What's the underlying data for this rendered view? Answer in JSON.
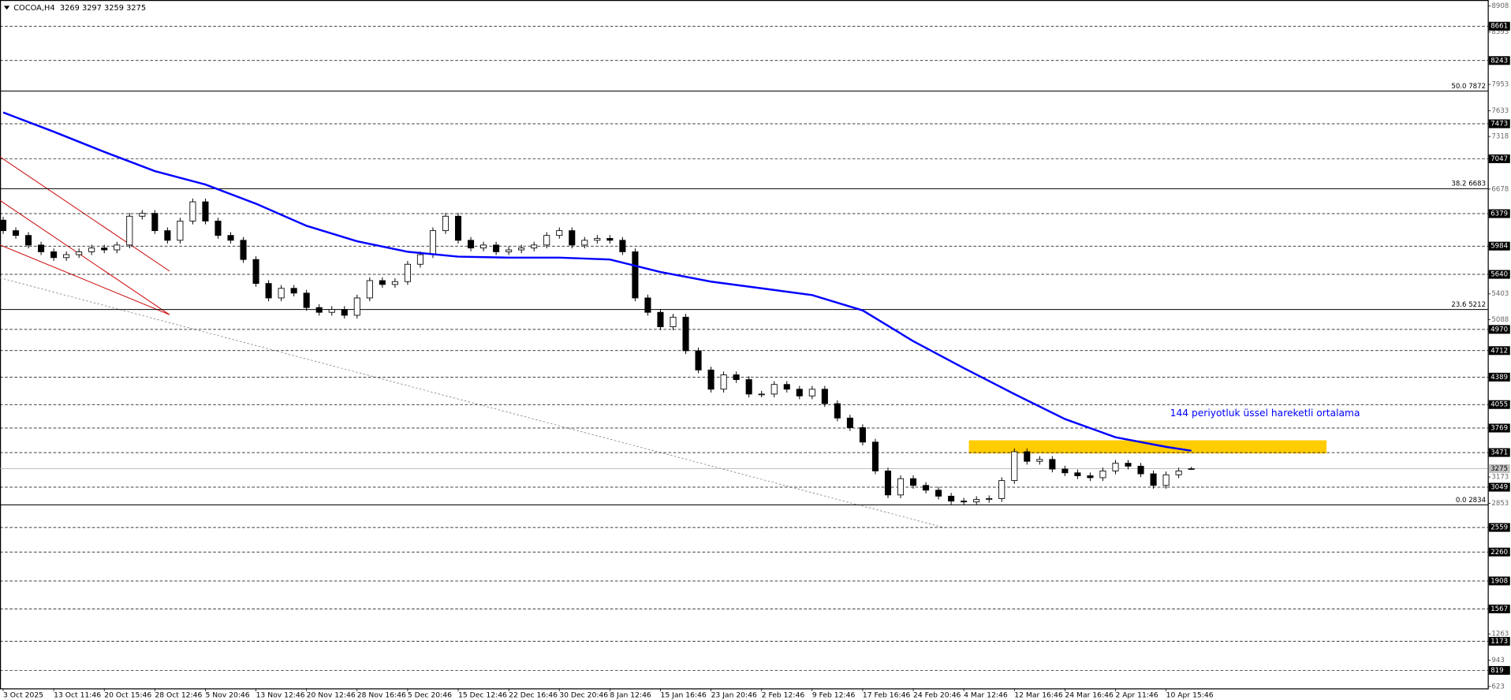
{
  "chart_data": {
    "type": "candlestick",
    "title": "COCOA,H4  3269 3297 3259 3275",
    "up_color": "#ffffff",
    "down_color": "#000000",
    "ohlc": [
      [
        6300,
        6340,
        6132,
        6172
      ],
      [
        6172,
        6212,
        6074,
        6114
      ],
      [
        6114,
        6154,
        5957,
        5997
      ],
      [
        5997,
        6037,
        5875,
        5915
      ],
      [
        5915,
        5955,
        5804,
        5844
      ],
      [
        5844,
        5920,
        5804,
        5880
      ],
      [
        5880,
        5955,
        5840,
        5915
      ],
      [
        5915,
        6001,
        5875,
        5961
      ],
      [
        5961,
        6001,
        5898,
        5938
      ],
      [
        5938,
        6037,
        5898,
        5997
      ],
      [
        5997,
        6388,
        5957,
        6348
      ],
      [
        6348,
        6423,
        6308,
        6383
      ],
      [
        6383,
        6423,
        6132,
        6172
      ],
      [
        6172,
        6212,
        6015,
        6055
      ],
      [
        6055,
        6329,
        6015,
        6289
      ],
      [
        6289,
        6563,
        6249,
        6523
      ],
      [
        6523,
        6563,
        6249,
        6289
      ],
      [
        6289,
        6329,
        6074,
        6114
      ],
      [
        6114,
        6154,
        6015,
        6055
      ],
      [
        6055,
        6095,
        5781,
        5821
      ],
      [
        5821,
        5861,
        5489,
        5529
      ],
      [
        5529,
        5569,
        5313,
        5353
      ],
      [
        5353,
        5510,
        5313,
        5470
      ],
      [
        5470,
        5510,
        5372,
        5412
      ],
      [
        5412,
        5452,
        5196,
        5236
      ],
      [
        5236,
        5276,
        5138,
        5178
      ],
      [
        5178,
        5253,
        5138,
        5213
      ],
      [
        5213,
        5253,
        5102,
        5142
      ],
      [
        5142,
        5393,
        5102,
        5353
      ],
      [
        5353,
        5604,
        5313,
        5564
      ],
      [
        5564,
        5604,
        5477,
        5517
      ],
      [
        5517,
        5592,
        5477,
        5552
      ],
      [
        5552,
        5803,
        5512,
        5763
      ],
      [
        5763,
        5920,
        5723,
        5880
      ],
      [
        5880,
        6212,
        5840,
        6172
      ],
      [
        6172,
        6388,
        6132,
        6348
      ],
      [
        6348,
        6388,
        6015,
        6055
      ],
      [
        6055,
        6095,
        5921,
        5961
      ],
      [
        5961,
        6037,
        5921,
        5997
      ],
      [
        5997,
        6037,
        5875,
        5915
      ],
      [
        5915,
        5978,
        5875,
        5938
      ],
      [
        5938,
        6001,
        5898,
        5961
      ],
      [
        5961,
        6037,
        5921,
        5997
      ],
      [
        5997,
        6154,
        5957,
        6114
      ],
      [
        6114,
        6212,
        6074,
        6172
      ],
      [
        6172,
        6212,
        5957,
        5997
      ],
      [
        5997,
        6095,
        5957,
        6055
      ],
      [
        6055,
        6118,
        6015,
        6078
      ],
      [
        6078,
        6118,
        6015,
        6055
      ],
      [
        6055,
        6095,
        5875,
        5915
      ],
      [
        5915,
        5955,
        5313,
        5353
      ],
      [
        5353,
        5393,
        5138,
        5178
      ],
      [
        5178,
        5218,
        4962,
        5002
      ],
      [
        5002,
        5159,
        4962,
        5119
      ],
      [
        5119,
        5159,
        4670,
        4710
      ],
      [
        4710,
        4750,
        4436,
        4476
      ],
      [
        4476,
        4516,
        4202,
        4242
      ],
      [
        4242,
        4457,
        4202,
        4417
      ],
      [
        4417,
        4457,
        4319,
        4359
      ],
      [
        4359,
        4399,
        4143,
        4183
      ],
      [
        4183,
        4223,
        4143,
        4183
      ],
      [
        4183,
        4340,
        4143,
        4300
      ],
      [
        4300,
        4340,
        4202,
        4242
      ],
      [
        4242,
        4282,
        4120,
        4160
      ],
      [
        4160,
        4282,
        4120,
        4242
      ],
      [
        4242,
        4282,
        4026,
        4066
      ],
      [
        4066,
        4106,
        3851,
        3891
      ],
      [
        3891,
        3931,
        3734,
        3774
      ],
      [
        3774,
        3814,
        3558,
        3598
      ],
      [
        3598,
        3638,
        3207,
        3247
      ],
      [
        3247,
        3287,
        2915,
        2955
      ],
      [
        2955,
        3193,
        2915,
        3153
      ],
      [
        3153,
        3193,
        3031,
        3071
      ],
      [
        3071,
        3111,
        2973,
        3013
      ],
      [
        3013,
        3053,
        2900,
        2940
      ],
      [
        2940,
        2980,
        2840,
        2880
      ],
      [
        2880,
        2920,
        2834,
        2870
      ],
      [
        2870,
        2940,
        2840,
        2900
      ],
      [
        2900,
        2950,
        2860,
        2910
      ],
      [
        2910,
        3170,
        2870,
        3130
      ],
      [
        3130,
        3521,
        3090,
        3481
      ],
      [
        3481,
        3521,
        3324,
        3364
      ],
      [
        3364,
        3427,
        3324,
        3387
      ],
      [
        3387,
        3427,
        3230,
        3270
      ],
      [
        3270,
        3310,
        3184,
        3224
      ],
      [
        3224,
        3264,
        3148,
        3188
      ],
      [
        3188,
        3228,
        3125,
        3165
      ],
      [
        3165,
        3287,
        3125,
        3247
      ],
      [
        3247,
        3381,
        3207,
        3341
      ],
      [
        3341,
        3381,
        3265,
        3305
      ],
      [
        3305,
        3345,
        3172,
        3212
      ],
      [
        3212,
        3252,
        3031,
        3071
      ],
      [
        3071,
        3240,
        3031,
        3200
      ],
      [
        3200,
        3287,
        3160,
        3247
      ],
      [
        3269,
        3297,
        3259,
        3275
      ]
    ],
    "xlim": [
      -0.25,
      117.45
    ],
    "xticks": [
      {
        "value": 0,
        "label": "3 Oct 2025"
      },
      {
        "value": 4,
        "label": "13 Oct 11:46"
      },
      {
        "value": 8,
        "label": "20 Oct 15:46"
      },
      {
        "value": 12,
        "label": "28 Oct 12:46"
      },
      {
        "value": 16,
        "label": "5 Nov 20:46"
      },
      {
        "value": 20,
        "label": "13 Nov 12:46"
      },
      {
        "value": 24,
        "label": "20 Nov 12:46"
      },
      {
        "value": 28,
        "label": "28 Nov 16:46"
      },
      {
        "value": 32,
        "label": "5 Dec 20:46"
      },
      {
        "value": 36,
        "label": "15 Dec 12:46"
      },
      {
        "value": 40,
        "label": "22 Dec 16:46"
      },
      {
        "value": 44,
        "label": "30 Dec 20:46"
      },
      {
        "value": 48,
        "label": "8 Jan 12:46"
      },
      {
        "value": 52,
        "label": "15 Jan 16:46"
      },
      {
        "value": 56,
        "label": "23 Jan 20:46"
      },
      {
        "value": 60,
        "label": "2 Feb 12:46"
      },
      {
        "value": 64,
        "label": "9 Feb 12:46"
      },
      {
        "value": 68,
        "label": "17 Feb 16:46"
      },
      {
        "value": 72,
        "label": "24 Feb 20:46"
      },
      {
        "value": 76,
        "label": "4 Mar 12:46"
      },
      {
        "value": 80,
        "label": "12 Mar 16:46"
      },
      {
        "value": 84,
        "label": "24 Mar 16:46"
      },
      {
        "value": 88,
        "label": "2 Apr 11:46"
      },
      {
        "value": 92,
        "label": "10 Apr 15:46"
      }
    ],
    "ylim": [
      600,
      8980
    ],
    "yticks": [
      8908,
      8593,
      7953,
      7633,
      7318,
      6678,
      5403,
      5088,
      3173,
      2853,
      1263,
      943,
      623
    ],
    "levels": [
      8661,
      8243,
      7473,
      7047,
      6379,
      5984,
      5640,
      4970,
      4712,
      4389,
      4055,
      3769,
      3471,
      3049,
      2559,
      2260,
      1908,
      1567,
      1173,
      819
    ],
    "current_price": 3275,
    "fib": [
      {
        "value": 7872,
        "label": "50.0 7872"
      },
      {
        "value": 6683,
        "label": "38.2 6683"
      },
      {
        "value": 5212,
        "label": "23.6 5212"
      },
      {
        "value": 2834,
        "label": "0.0 2834"
      }
    ],
    "ema": {
      "color": "#0000ff",
      "label": "144 periyotluk üssel hareketli ortalama",
      "x": [
        0,
        4,
        8,
        12,
        16,
        20,
        24,
        28,
        32,
        36,
        40,
        44,
        48,
        52,
        56,
        60,
        64,
        68,
        72,
        76,
        80,
        84,
        88,
        92,
        94
      ],
      "values": [
        7611,
        7377,
        7131,
        6897,
        6734,
        6500,
        6231,
        6043,
        5915,
        5856,
        5844,
        5844,
        5821,
        5669,
        5552,
        5470,
        5388,
        5201,
        4827,
        4499,
        4183,
        3879,
        3657,
        3540,
        3493
      ]
    },
    "zone": {
      "x": [
        76.4,
        104.7
      ],
      "y": [
        3460,
        3620
      ],
      "color": "#ffcc00"
    }
  }
}
